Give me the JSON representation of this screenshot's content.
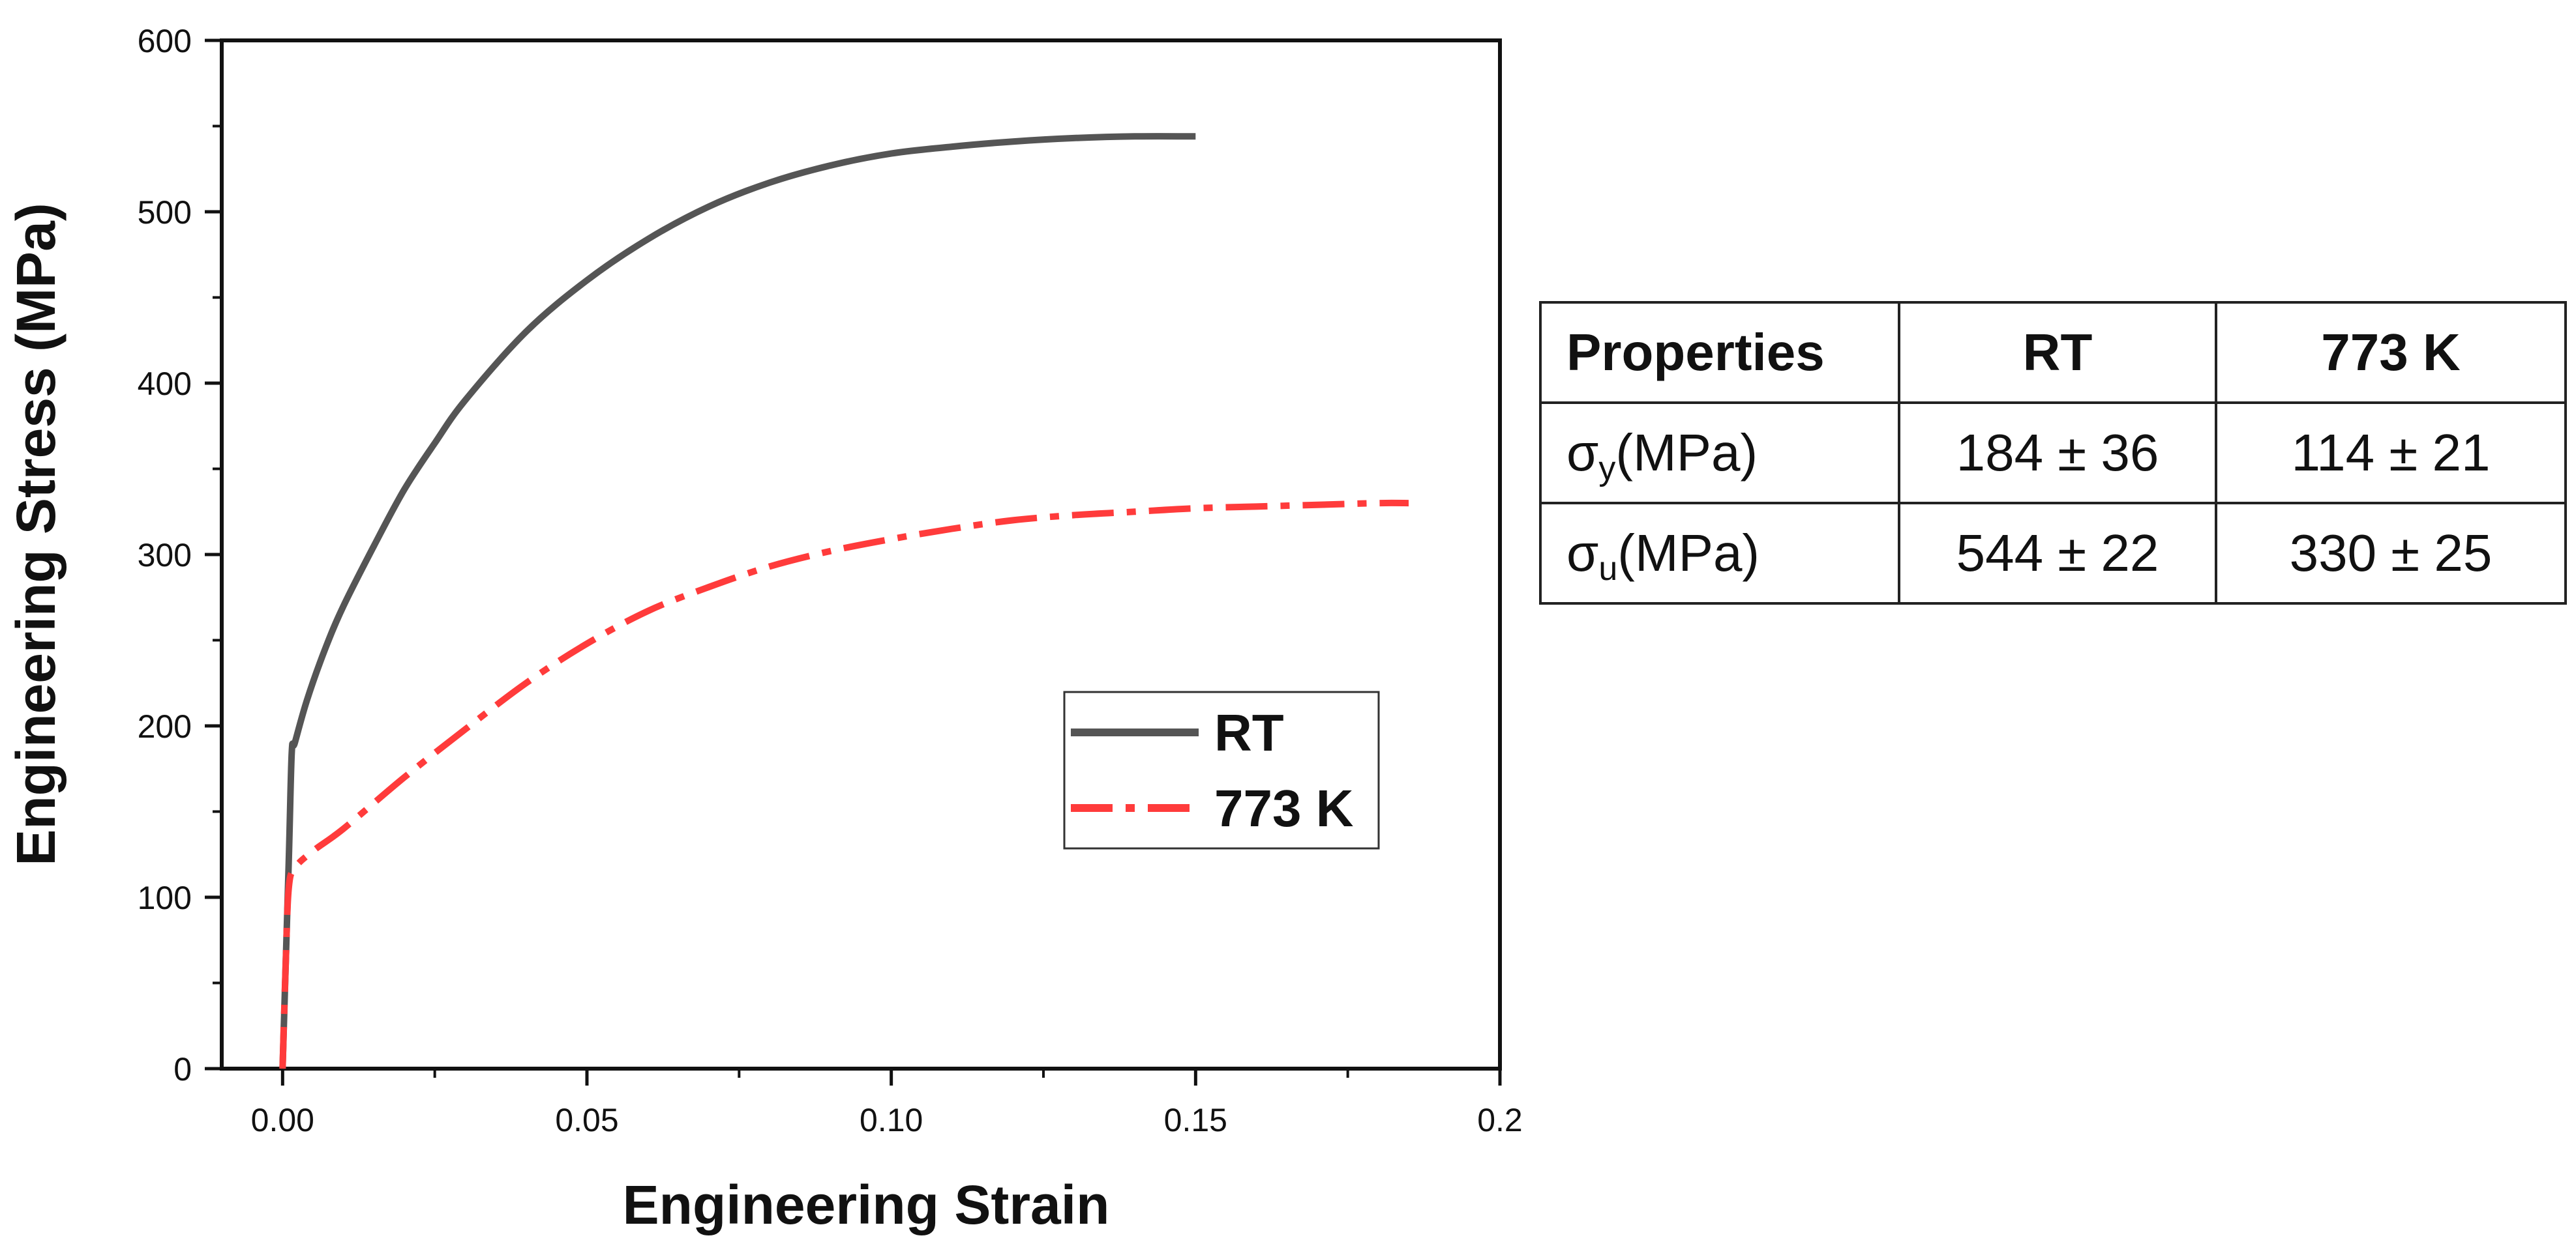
{
  "chart_data": {
    "type": "line",
    "xlabel": "Engineering Strain",
    "ylabel": "Engineering Stress (MPa)",
    "xlim": [
      -0.01,
      0.2
    ],
    "ylim": [
      0,
      600
    ],
    "xticks": [
      0.0,
      0.05,
      0.1,
      0.15,
      0.2
    ],
    "xtick_labels": [
      "0.00",
      "0.05",
      "0.10",
      "0.15",
      "0.2"
    ],
    "yticks": [
      0,
      100,
      200,
      300,
      400,
      500,
      600
    ],
    "ytick_labels": [
      "0",
      "100",
      "200",
      "300",
      "400",
      "500",
      "600"
    ],
    "legend_position": "center-right",
    "series": [
      {
        "name": "RT",
        "color": "#555555",
        "style": "solid",
        "x": [
          0.0,
          0.001,
          0.0015,
          0.002,
          0.004,
          0.007,
          0.01,
          0.015,
          0.02,
          0.025,
          0.03,
          0.04,
          0.05,
          0.06,
          0.07,
          0.08,
          0.09,
          0.1,
          0.11,
          0.12,
          0.13,
          0.14,
          0.15
        ],
        "y": [
          0,
          120,
          184,
          190,
          215,
          245,
          270,
          305,
          338,
          365,
          390,
          430,
          460,
          484,
          503,
          517,
          527,
          534,
          538,
          541,
          543,
          544,
          544
        ]
      },
      {
        "name": "773 K",
        "color": "#ff3b3b",
        "style": "dashdot",
        "x": [
          0.0,
          0.0005,
          0.001,
          0.002,
          0.005,
          0.01,
          0.02,
          0.03,
          0.04,
          0.05,
          0.06,
          0.07,
          0.08,
          0.09,
          0.1,
          0.11,
          0.12,
          0.13,
          0.14,
          0.15,
          0.16,
          0.17,
          0.18,
          0.185
        ],
        "y": [
          0,
          60,
          105,
          117,
          127,
          140,
          170,
          198,
          225,
          248,
          267,
          281,
          293,
          302,
          309,
          315,
          320,
          323,
          325,
          327,
          328,
          329,
          330,
          330
        ]
      }
    ]
  },
  "table": {
    "headers": [
      "Properties",
      "RT",
      "773 K"
    ],
    "rows": [
      {
        "symbol": "σ",
        "sub": "y",
        "unit": "(MPa)",
        "rt": "184 ± 36",
        "k773": "114 ± 21"
      },
      {
        "symbol": "σ",
        "sub": "u",
        "unit": "(MPa)",
        "rt": "544 ± 22",
        "k773": "330 ± 25"
      }
    ]
  }
}
